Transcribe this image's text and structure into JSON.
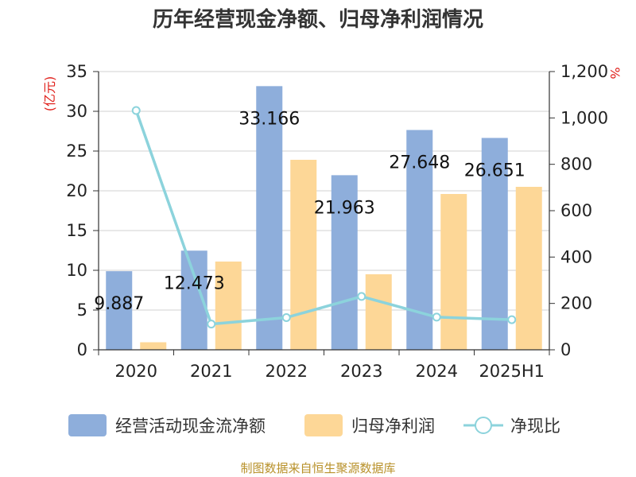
{
  "chart_data": {
    "type": "bar",
    "title": "历年经营现金净额、归母净利润情况",
    "categories": [
      "2020",
      "2021",
      "2022",
      "2023",
      "2024",
      "2025H1"
    ],
    "series": [
      {
        "name": "经营活动现金流净额",
        "axis": "left",
        "type": "bar",
        "color": "#8eaedb",
        "values": [
          9.887,
          12.473,
          33.166,
          21.963,
          27.648,
          26.651
        ]
      },
      {
        "name": "归母净利润",
        "axis": "left",
        "type": "bar",
        "color": "#fdd797",
        "values": [
          0.95,
          11.1,
          23.9,
          9.5,
          19.6,
          20.5
        ]
      },
      {
        "name": "净现比",
        "axis": "right",
        "type": "line",
        "color": "#8cd3dc",
        "values": [
          1032,
          111,
          139,
          230,
          141,
          130
        ]
      }
    ],
    "data_labels": [
      "9.887",
      "12.473",
      "33.166",
      "21.963",
      "27.648",
      "26.651"
    ],
    "y_left": {
      "label": "(亿元)",
      "min": 0,
      "max": 35,
      "ticks": [
        "0",
        "5",
        "10",
        "15",
        "20",
        "25",
        "30",
        "35"
      ]
    },
    "y_right": {
      "label": "%",
      "min": 0,
      "max": 1200,
      "ticks": [
        "0",
        "200",
        "400",
        "600",
        "800",
        "1,000",
        "1,200"
      ]
    },
    "grid": true,
    "legend_position": "bottom"
  },
  "source": "制图数据来自恒生聚源数据库"
}
